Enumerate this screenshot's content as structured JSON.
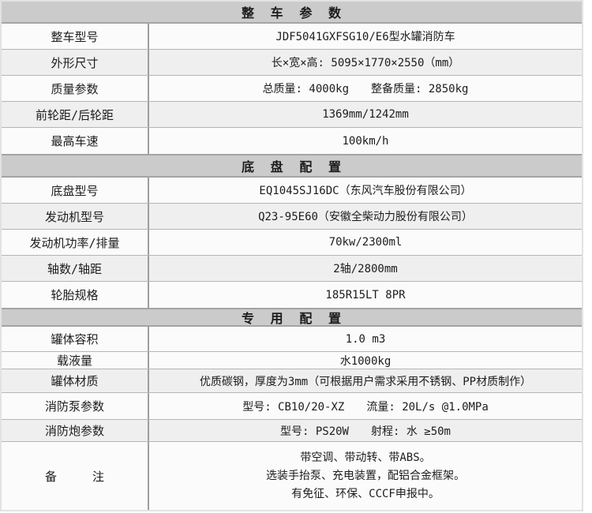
{
  "colors": {
    "page_bg": "#ffffff",
    "header_bg": "#cbcbcb",
    "row_bg": "#fbfbfb",
    "row_alt_bg": "#efefef",
    "divider": "#9e9e9e",
    "row_line": "#b5b5b5",
    "outer_border": "#e2e2e2",
    "header_line": "#a4a4a4",
    "text": "#1c1c1c"
  },
  "table": {
    "sections": [
      {
        "key": "vehicle-params",
        "title": "整 车 参 数",
        "rows": [
          {
            "key": "model",
            "label": "整车型号",
            "value": "JDF5041GXFSG10/E6型水罐消防车"
          },
          {
            "key": "dimensions",
            "label": "外形尺寸",
            "value": "长×宽×高: 5095×1770×2550（mm）"
          },
          {
            "key": "mass",
            "label": "质量参数",
            "value": "总质量: 4000kg　　整备质量: 2850kg"
          },
          {
            "key": "track",
            "label": "前轮距/后轮距",
            "value": "1369mm/1242mm"
          },
          {
            "key": "max-speed",
            "label": "最高车速",
            "value": "100km/h"
          }
        ]
      },
      {
        "key": "chassis-config",
        "title": "底 盘 配 置",
        "rows": [
          {
            "key": "chassis-model",
            "label": "底盘型号",
            "value": "EQ1045SJ16DC（东风汽车股份有限公司）"
          },
          {
            "key": "engine-model",
            "label": "发动机型号",
            "value": "Q23-95E60（安徽全柴动力股份有限公司）"
          },
          {
            "key": "engine-power",
            "label": "发动机功率/排量",
            "value": "70kw/2300ml"
          },
          {
            "key": "axles",
            "label": "轴数/轴距",
            "value": "2轴/2800mm"
          },
          {
            "key": "tires",
            "label": "轮胎规格",
            "value": "185R15LT 8PR"
          }
        ]
      },
      {
        "key": "special-config",
        "title": "专 用 配 置",
        "rows": [
          {
            "key": "tank-volume",
            "label": "罐体容积",
            "value": "1.0 m3"
          },
          {
            "key": "liquid-capacity",
            "label": "载液量",
            "value": "水1000kg"
          },
          {
            "key": "tank-material",
            "label": "罐体材质",
            "value": "优质碳钢，厚度为3mm（可根据用户需求采用不锈钢、PP材质制作）"
          },
          {
            "key": "pump-params",
            "label": "消防泵参数",
            "value": "型号: CB10/20-XZ　　流量: 20L/s @1.0MPa"
          },
          {
            "key": "monitor-params",
            "label": "消防炮参数",
            "value": "型号: PS20W　　射程: 水 ≥50m"
          },
          {
            "key": "remarks",
            "label": "备　　　注",
            "lines": [
              "带空调、带动转、带ABS。",
              "选装手抬泵、充电装置，配铝合金框架。",
              "有免征、环保、CCCF申报中。"
            ]
          }
        ]
      }
    ]
  }
}
